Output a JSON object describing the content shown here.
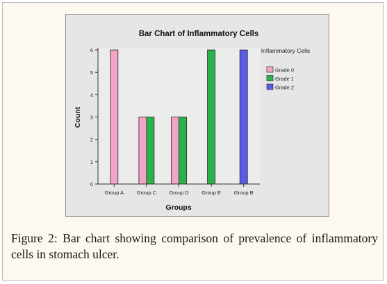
{
  "caption": {
    "label": "Figure 2:",
    "text": "Bar chart showing comparison of prevalence of inflammatory cells in stomach ulcer."
  },
  "chart_data": {
    "type": "bar",
    "title": "Bar Chart of Inflammatory Cells",
    "xlabel": "Groups",
    "ylabel": "Count",
    "ylim": [
      0,
      6
    ],
    "yticks": [
      0,
      1,
      2,
      3,
      4,
      5,
      6
    ],
    "grid": false,
    "legend_title": "Inflammatory Cells",
    "legend_position": "right",
    "categories": [
      "Group A",
      "Group C",
      "Group D",
      "Group E",
      "Group B"
    ],
    "series": [
      {
        "name": "Grade 0",
        "color": "#f3a5c7",
        "values": [
          6,
          3,
          3,
          0,
          0
        ]
      },
      {
        "name": "Grade 1",
        "color": "#2bb24c",
        "values": [
          0,
          3,
          3,
          6,
          0
        ]
      },
      {
        "name": "Grade 2",
        "color": "#5a5ce8",
        "values": [
          0,
          0,
          0,
          0,
          6
        ]
      }
    ]
  }
}
